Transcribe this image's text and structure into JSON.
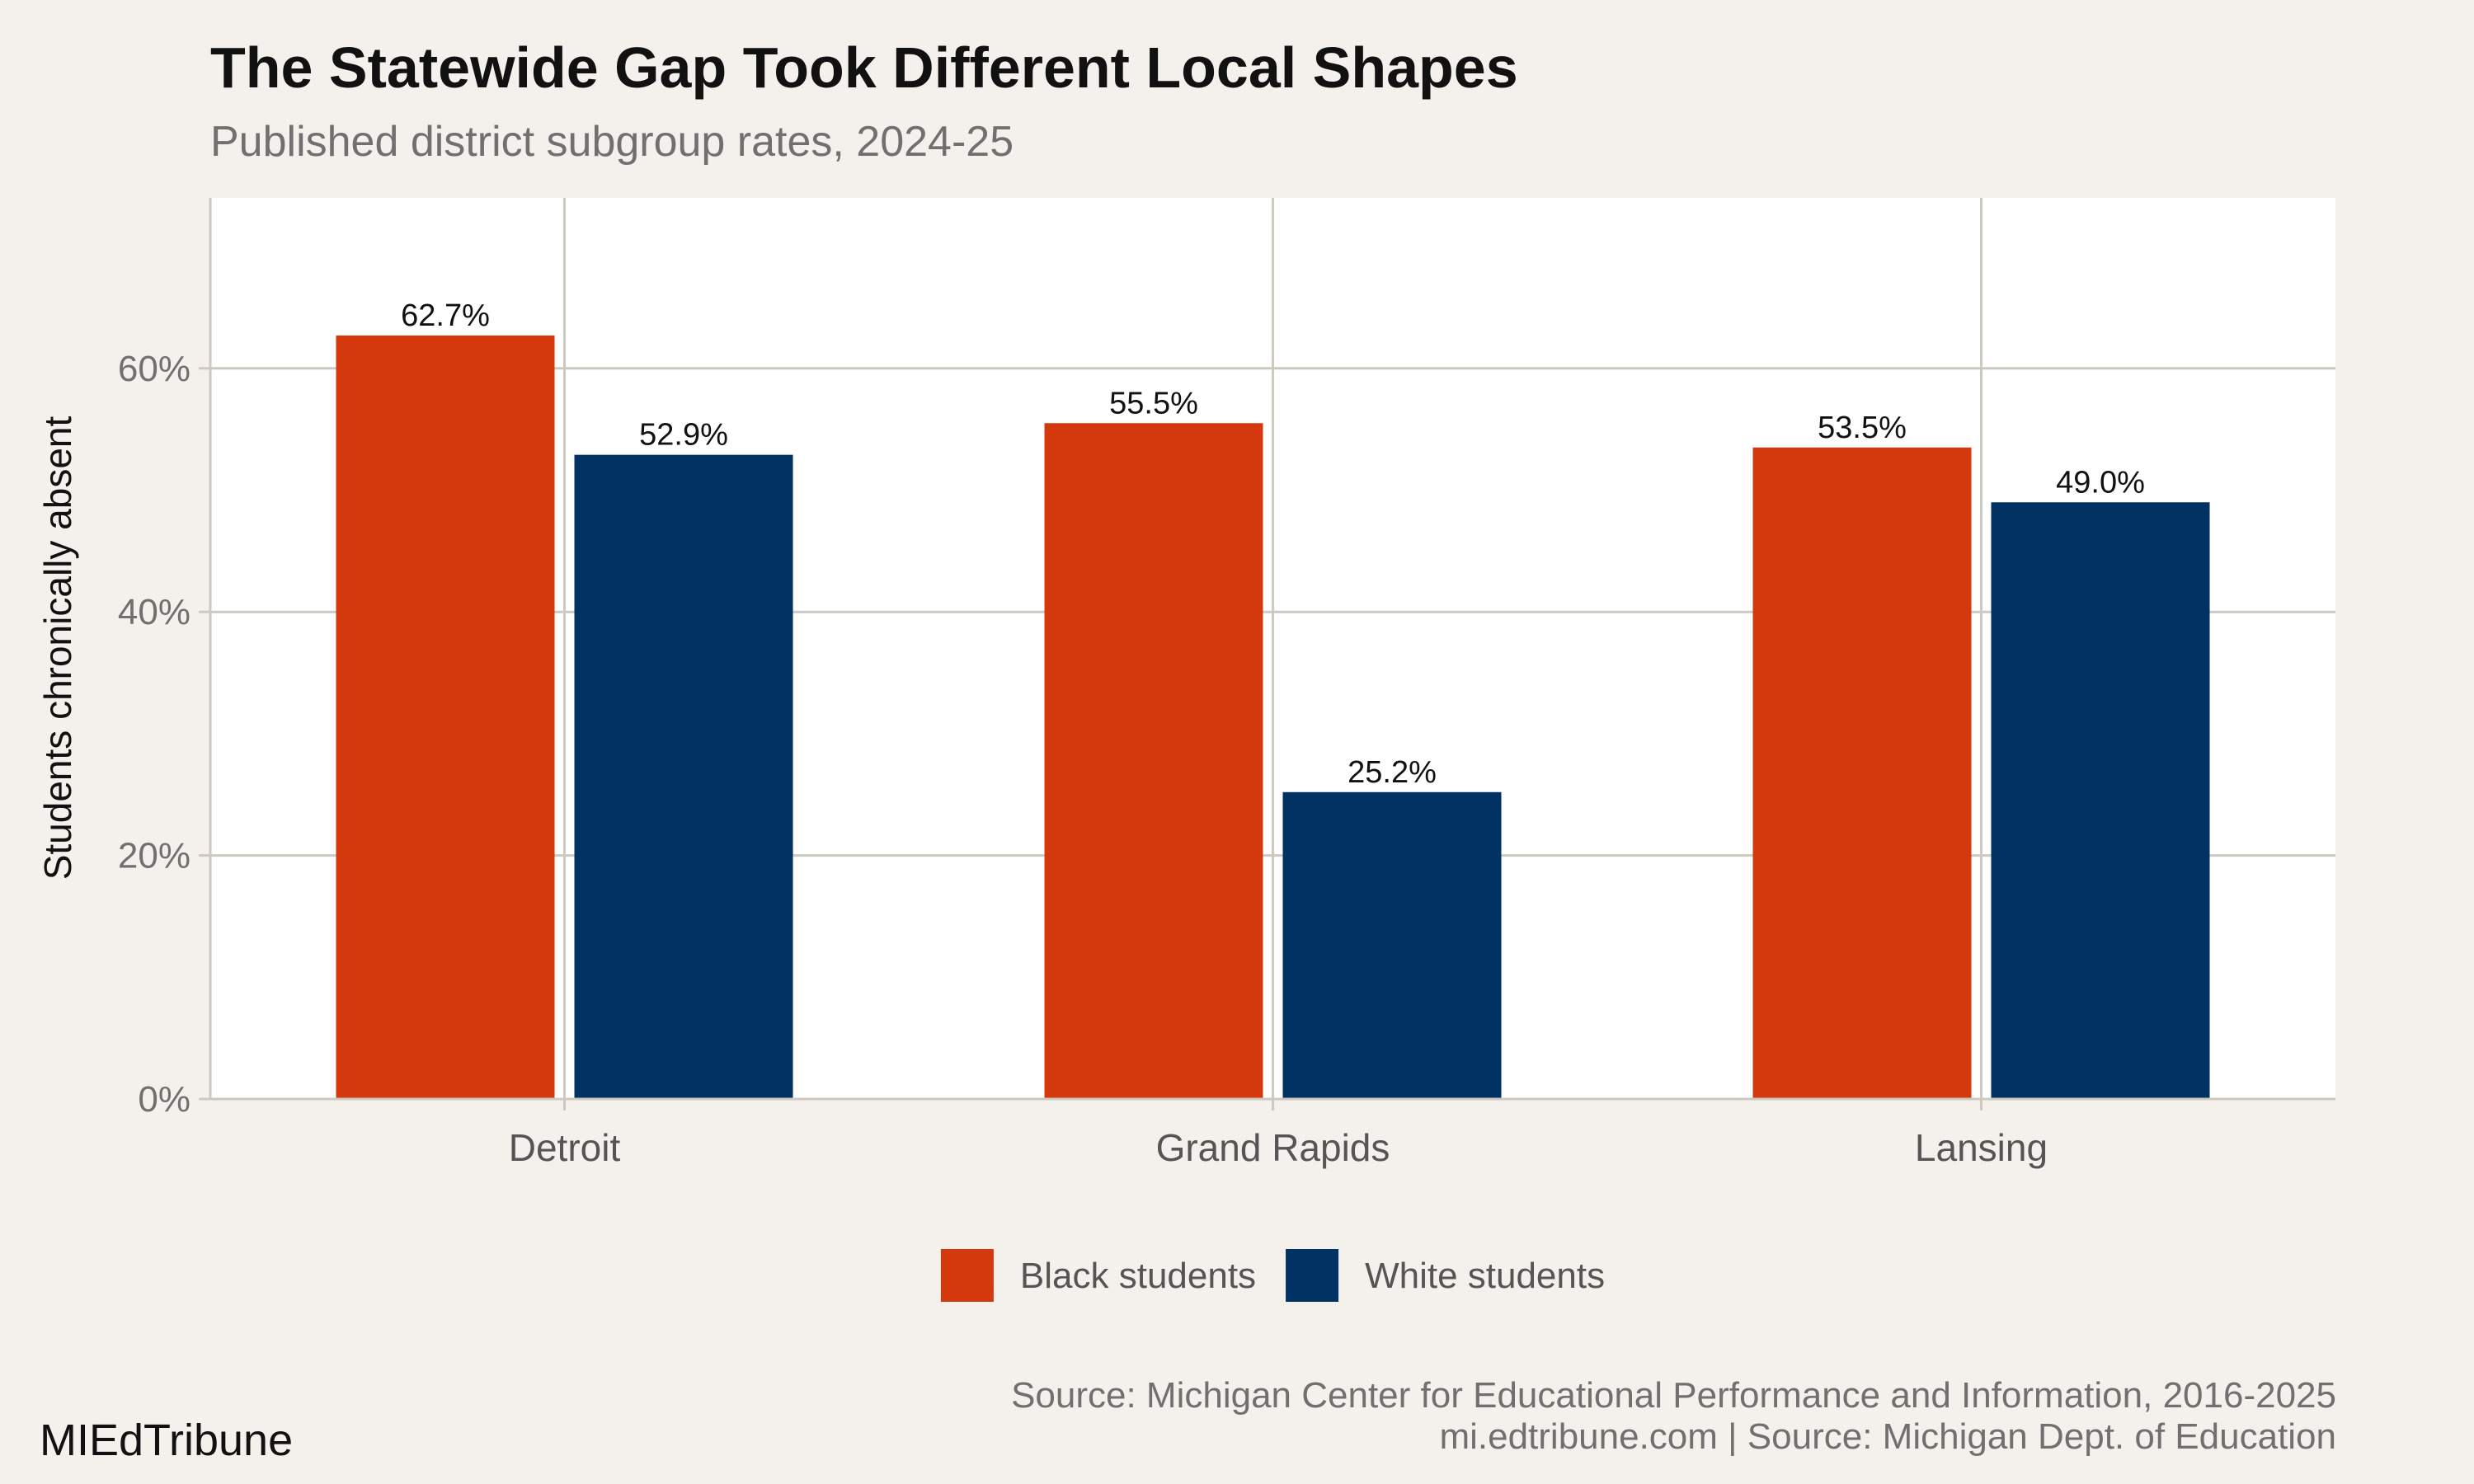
{
  "chart_data": {
    "type": "bar",
    "title": "The Statewide Gap Took Different Local Shapes",
    "subtitle": "Published district subgroup rates, 2024-25",
    "xlabel": "",
    "ylabel": "Students chronically absent",
    "categories": [
      "Detroit",
      "Grand Rapids",
      "Lansing"
    ],
    "series": [
      {
        "name": "Black students",
        "values": [
          62.7,
          55.5,
          53.5
        ],
        "labels": [
          "62.7%",
          "55.5%",
          "53.5%"
        ],
        "color": "#d4380d"
      },
      {
        "name": "White students",
        "values": [
          52.9,
          25.2,
          49.0
        ],
        "labels": [
          "52.9%",
          "25.2%",
          "49.0%"
        ],
        "color": "#003263"
      }
    ],
    "ylim": [
      0,
      74
    ],
    "yticks": [
      0,
      20,
      40,
      60
    ],
    "ytick_labels": [
      "0%",
      "20%",
      "40%",
      "60%"
    ],
    "grid": true,
    "legend_placement": "bottom"
  },
  "footer": {
    "source": "Source: Michigan Center for Educational Performance and Information, 2016-2025",
    "credit": "mi.edtribune.com | Source: Michigan Dept. of Education",
    "brand": "MIEdTribune"
  },
  "colors": {
    "background": "#f4f1ec",
    "panel": "#ffffff",
    "grid": "#cdc9c1"
  }
}
